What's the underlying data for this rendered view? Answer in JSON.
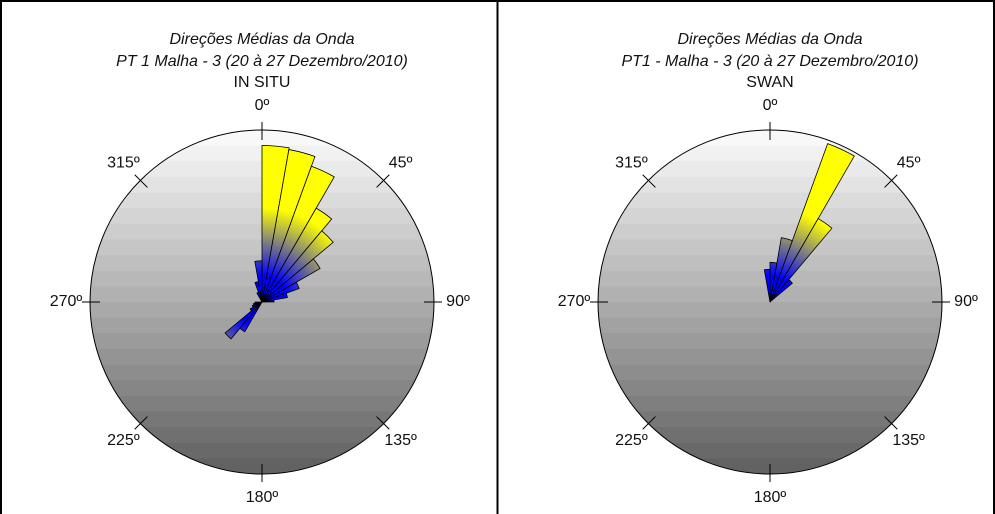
{
  "chart_data": [
    {
      "type": "polar_bar",
      "title": "Direções Médias da Onda",
      "subtitle": "PT 1 Malha - 3 (20 à 27 Dezembro/2010)",
      "label": "IN SITU",
      "directions": [
        5,
        15,
        25,
        35,
        45,
        55,
        65,
        75,
        85,
        355,
        345,
        335,
        225,
        215,
        235,
        245,
        255,
        265
      ],
      "values": [
        91,
        90,
        84,
        63,
        54,
        39,
        23,
        15,
        7,
        24,
        12,
        6,
        28,
        20,
        8,
        6,
        5,
        4
      ],
      "rlim": [
        0,
        100
      ],
      "angle_ticks": [
        {
          "value": 0,
          "label": "0º"
        },
        {
          "value": 45,
          "label": "45º"
        },
        {
          "value": 90,
          "label": "90º"
        },
        {
          "value": 135,
          "label": "135º"
        },
        {
          "value": 180,
          "label": "180º"
        },
        {
          "value": 225,
          "label": "225º"
        },
        {
          "value": 270,
          "label": "270º"
        },
        {
          "value": 315,
          "label": "315º"
        }
      ],
      "colors": [
        "#0000ff",
        "#ffff00"
      ]
    },
    {
      "type": "polar_bar",
      "title": "Direções Médias da Onda",
      "subtitle": "PT1 - Malha - 3 (20 à 27 Dezembro/2010)",
      "label": "SWAN",
      "directions": [
        25,
        35,
        15,
        5,
        355,
        45
      ],
      "values": [
        98,
        56,
        38,
        23,
        19,
        17
      ],
      "rlim": [
        0,
        100
      ],
      "angle_ticks": [
        {
          "value": 0,
          "label": "0º"
        },
        {
          "value": 45,
          "label": "45º"
        },
        {
          "value": 90,
          "label": "90º"
        },
        {
          "value": 135,
          "label": "135º"
        },
        {
          "value": 180,
          "label": "180º"
        },
        {
          "value": 225,
          "label": "225º"
        },
        {
          "value": 270,
          "label": "270º"
        },
        {
          "value": 315,
          "label": "315º"
        }
      ],
      "colors": [
        "#0000ff",
        "#ffff00"
      ]
    }
  ]
}
